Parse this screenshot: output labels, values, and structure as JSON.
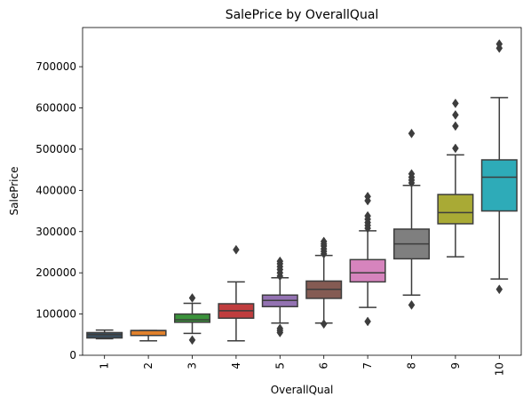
{
  "chart_data": {
    "type": "box",
    "title": "SalePrice by OverallQual",
    "xlabel": "OverallQual",
    "ylabel": "SalePrice",
    "ylim": [
      0,
      795000
    ],
    "y_ticks": [
      0,
      100000,
      200000,
      300000,
      400000,
      500000,
      600000,
      700000
    ],
    "y_tick_labels": [
      "0",
      "100000",
      "200000",
      "300000",
      "400000",
      "500000",
      "600000",
      "700000"
    ],
    "grid": false,
    "categories": [
      "1",
      "2",
      "3",
      "4",
      "5",
      "6",
      "7",
      "8",
      "9",
      "10"
    ],
    "boxes": [
      {
        "category": "1",
        "color": "#3a4f5e",
        "whisker_low": 40000,
        "q1": 42000,
        "median": 50000,
        "q3": 55000,
        "whisker_high": 61000,
        "outliers": []
      },
      {
        "category": "2",
        "color": "#e1812c",
        "whisker_low": 35000,
        "q1": 48000,
        "median": 60000,
        "q3": 60000,
        "whisker_high": 60000,
        "outliers": []
      },
      {
        "category": "3",
        "color": "#3a923a",
        "whisker_low": 53000,
        "q1": 80000,
        "median": 86000,
        "q3": 100000,
        "whisker_high": 126000,
        "outliers": [
          37000,
          139000
        ]
      },
      {
        "category": "4",
        "color": "#c03d3e",
        "whisker_low": 35000,
        "q1": 90000,
        "median": 108000,
        "q3": 125000,
        "whisker_high": 178000,
        "outliers": [
          256000
        ]
      },
      {
        "category": "5",
        "color": "#9372b2",
        "whisker_low": 78000,
        "q1": 118000,
        "median": 133000,
        "q3": 146000,
        "whisker_high": 188000,
        "outliers": [
          55000,
          60000,
          65000,
          192000,
          200000,
          208000,
          215000,
          222000,
          228000
        ]
      },
      {
        "category": "6",
        "color": "#845b53",
        "whisker_low": 78000,
        "q1": 138000,
        "median": 160000,
        "q3": 180000,
        "whisker_high": 242000,
        "outliers": [
          76000,
          246000,
          252000,
          258000,
          265000,
          270000,
          276000
        ]
      },
      {
        "category": "7",
        "color": "#d684bd",
        "whisker_low": 116000,
        "q1": 178000,
        "median": 200000,
        "q3": 232000,
        "whisker_high": 302000,
        "outliers": [
          82000,
          308000,
          315000,
          322000,
          330000,
          338000,
          375000,
          385000
        ]
      },
      {
        "category": "8",
        "color": "#7f7f7f",
        "whisker_low": 146000,
        "q1": 234000,
        "median": 270000,
        "q3": 306000,
        "whisker_high": 412000,
        "outliers": [
          122000,
          418000,
          425000,
          432000,
          440000,
          538000
        ]
      },
      {
        "category": "9",
        "color": "#a9aa35",
        "whisker_low": 239000,
        "q1": 319000,
        "median": 346000,
        "q3": 390000,
        "whisker_high": 486000,
        "outliers": [
          502000,
          556000,
          583000,
          611000
        ]
      },
      {
        "category": "10",
        "color": "#2eabb8",
        "whisker_low": 185000,
        "q1": 350000,
        "median": 432000,
        "q3": 474000,
        "whisker_high": 625000,
        "outliers": [
          160000,
          745000,
          755000
        ]
      }
    ]
  }
}
